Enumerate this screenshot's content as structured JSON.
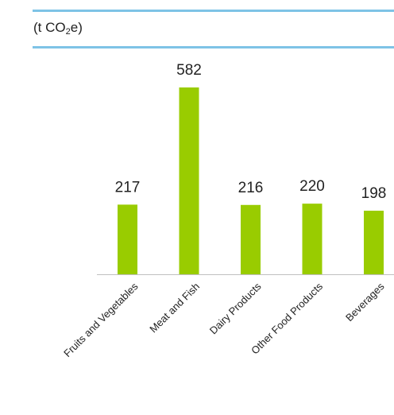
{
  "header": {
    "unit_prefix": "(t CO",
    "unit_sub": "2",
    "unit_suffix": "e)"
  },
  "colors": {
    "bar": "#99cc00",
    "rule": "#7ec3e6",
    "axis": "#bfbfbf",
    "text": "#222222"
  },
  "chart_data": {
    "type": "bar",
    "title": "",
    "xlabel": "",
    "ylabel": "(t CO2e)",
    "categories": [
      "Fruits and Vegetables",
      "Meat and Fish",
      "Dairy Products",
      "Other Food Products",
      "Beverages"
    ],
    "values": [
      217,
      582,
      216,
      220,
      198
    ],
    "data_labels": [
      "217",
      "582",
      "216",
      "220",
      "198"
    ],
    "ylim": [
      0,
      640
    ],
    "grid": false,
    "legend": "none"
  }
}
